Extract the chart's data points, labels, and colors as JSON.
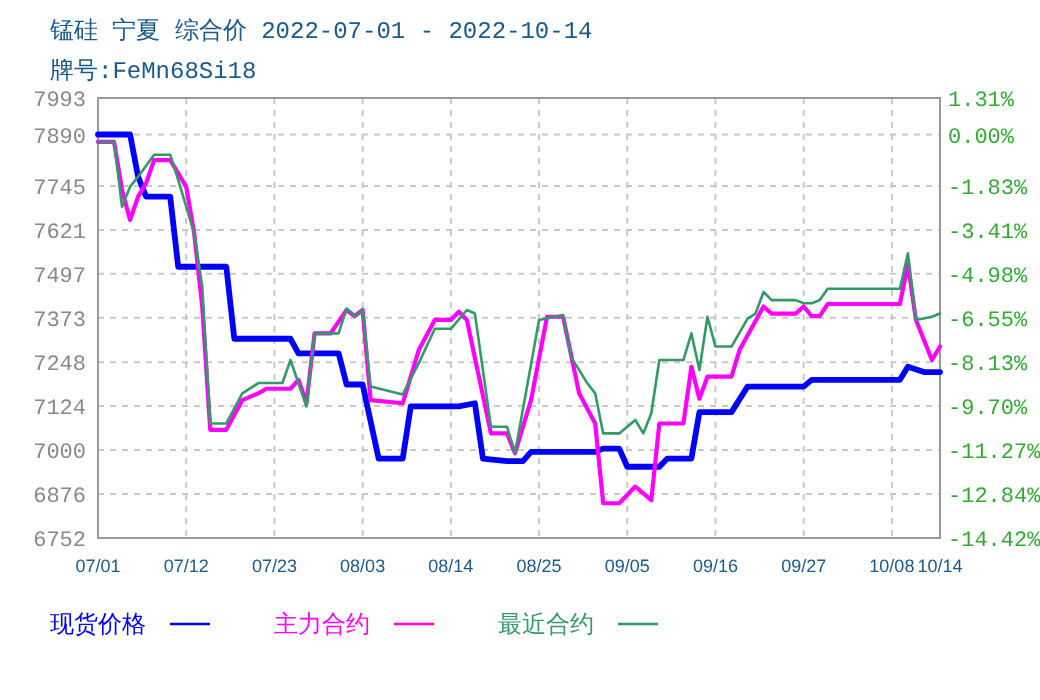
{
  "chart_data": {
    "type": "line",
    "title": "锰硅 宁夏 综合价 2022-07-01 - 2022-10-14",
    "subtitle": "牌号:FeMn68Si18",
    "xlim": [
      "2022-07-01",
      "2022-10-14"
    ],
    "xticks": [
      {
        "value": "2022-07-01",
        "label": "07/01"
      },
      {
        "value": "2022-07-12",
        "label": "07/12"
      },
      {
        "value": "2022-07-23",
        "label": "07/23"
      },
      {
        "value": "2022-08-03",
        "label": "08/03"
      },
      {
        "value": "2022-08-14",
        "label": "08/14"
      },
      {
        "value": "2022-08-25",
        "label": "08/25"
      },
      {
        "value": "2022-09-05",
        "label": "09/05"
      },
      {
        "value": "2022-09-16",
        "label": "09/16"
      },
      {
        "value": "2022-09-27",
        "label": "09/27"
      },
      {
        "value": "2022-10-08",
        "label": "10/08"
      },
      {
        "value": "2022-10-14",
        "label": "10/14"
      }
    ],
    "ylim": [
      6752,
      7993
    ],
    "yticks": [
      6752,
      6876,
      7000,
      7124,
      7248,
      7373,
      7497,
      7621,
      7745,
      7890,
      7993
    ],
    "y2lim": [
      -14.42,
      1.31
    ],
    "y2ticks": [
      {
        "value": -14.42,
        "label": "-14.42%"
      },
      {
        "value": -12.84,
        "label": "-12.84%"
      },
      {
        "value": -11.27,
        "label": "-11.27%"
      },
      {
        "value": -9.7,
        "label": "-9.70%"
      },
      {
        "value": -8.13,
        "label": "-8.13%"
      },
      {
        "value": -6.55,
        "label": "-6.55%"
      },
      {
        "value": -4.98,
        "label": "-4.98%"
      },
      {
        "value": -3.41,
        "label": "-3.41%"
      },
      {
        "value": -1.83,
        "label": "-1.83%"
      },
      {
        "value": 0,
        "label": "0.00%"
      },
      {
        "value": 1.31,
        "label": "1.31%"
      }
    ],
    "grid": true,
    "legend": "bottom",
    "line_style": "solid",
    "series": [
      {
        "name": "现货价格",
        "color": "#0000ff",
        "x": [
          "2022-07-01",
          "2022-07-05",
          "2022-07-06",
          "2022-07-07",
          "2022-07-10",
          "2022-07-11",
          "2022-07-17",
          "2022-07-18",
          "2022-07-25",
          "2022-07-26",
          "2022-07-31",
          "2022-08-01",
          "2022-08-03",
          "2022-08-05",
          "2022-08-08",
          "2022-08-09",
          "2022-08-15",
          "2022-08-17",
          "2022-08-18",
          "2022-08-21",
          "2022-08-23",
          "2022-08-24",
          "2022-09-01",
          "2022-09-02",
          "2022-09-04",
          "2022-09-05",
          "2022-09-09",
          "2022-09-10",
          "2022-09-13",
          "2022-09-14",
          "2022-09-18",
          "2022-09-20",
          "2022-09-27",
          "2022-09-28",
          "2022-10-09",
          "2022-10-10",
          "2022-10-12",
          "2022-10-14"
        ],
        "values": [
          7890,
          7890,
          7771,
          7715,
          7715,
          7517,
          7517,
          7314,
          7314,
          7273,
          7273,
          7185,
          7185,
          6976,
          6976,
          7123,
          7123,
          7132,
          6976,
          6969,
          6969,
          6995,
          6995,
          7004,
          7004,
          6953,
          6953,
          6976,
          6976,
          7107,
          7107,
          7179,
          7179,
          7198,
          7198,
          7235,
          7220,
          7220
        ]
      },
      {
        "name": "主力合约",
        "color": "#ff00ff",
        "x": [
          "2022-07-01",
          "2022-07-03",
          "2022-07-04",
          "2022-07-05",
          "2022-07-06",
          "2022-07-07",
          "2022-07-08",
          "2022-07-10",
          "2022-07-12",
          "2022-07-13",
          "2022-07-14",
          "2022-07-15",
          "2022-07-17",
          "2022-07-19",
          "2022-07-21",
          "2022-07-22",
          "2022-07-25",
          "2022-07-26",
          "2022-07-27",
          "2022-07-28",
          "2022-07-30",
          "2022-08-01",
          "2022-08-02",
          "2022-08-03",
          "2022-08-04",
          "2022-08-08",
          "2022-08-10",
          "2022-08-12",
          "2022-08-14",
          "2022-08-15",
          "2022-08-16",
          "2022-08-19",
          "2022-08-21",
          "2022-08-22",
          "2022-08-24",
          "2022-08-26",
          "2022-08-28",
          "2022-08-30",
          "2022-09-01",
          "2022-09-02",
          "2022-09-04",
          "2022-09-06",
          "2022-09-08",
          "2022-09-09",
          "2022-09-12",
          "2022-09-13",
          "2022-09-14",
          "2022-09-15",
          "2022-09-18",
          "2022-09-19",
          "2022-09-22",
          "2022-09-23",
          "2022-09-26",
          "2022-09-27",
          "2022-09-28",
          "2022-09-29",
          "2022-09-30",
          "2022-10-09",
          "2022-10-10",
          "2022-10-11",
          "2022-10-13",
          "2022-10-14"
        ],
        "values": [
          7869,
          7869,
          7733,
          7649,
          7715,
          7753,
          7818,
          7818,
          7743,
          7611,
          7405,
          7057,
          7057,
          7141,
          7160,
          7173,
          7173,
          7198,
          7132,
          7329,
          7329,
          7395,
          7378,
          7395,
          7141,
          7132,
          7282,
          7367,
          7367,
          7390,
          7367,
          7047,
          7047,
          6991,
          7141,
          7376,
          7376,
          7160,
          7075,
          6850,
          6850,
          6897,
          6859,
          7075,
          7075,
          7235,
          7145,
          7207,
          7207,
          7282,
          7405,
          7385,
          7385,
          7405,
          7378,
          7378,
          7412,
          7412,
          7524,
          7367,
          7254,
          7292
        ]
      },
      {
        "name": "最近合约",
        "color": "#339966",
        "x": [
          "2022-07-01",
          "2022-07-03",
          "2022-07-04",
          "2022-07-05",
          "2022-07-06",
          "2022-07-08",
          "2022-07-10",
          "2022-07-11",
          "2022-07-13",
          "2022-07-14",
          "2022-07-15",
          "2022-07-17",
          "2022-07-19",
          "2022-07-21",
          "2022-07-24",
          "2022-07-25",
          "2022-07-27",
          "2022-07-28",
          "2022-07-31",
          "2022-08-01",
          "2022-08-02",
          "2022-08-03",
          "2022-08-04",
          "2022-08-08",
          "2022-08-10",
          "2022-08-12",
          "2022-08-14",
          "2022-08-16",
          "2022-08-17",
          "2022-08-19",
          "2022-08-21",
          "2022-08-22",
          "2022-08-25",
          "2022-08-28",
          "2022-08-29",
          "2022-08-31",
          "2022-09-01",
          "2022-09-02",
          "2022-09-04",
          "2022-09-06",
          "2022-09-07",
          "2022-09-08",
          "2022-09-09",
          "2022-09-12",
          "2022-09-13",
          "2022-09-14",
          "2022-09-15",
          "2022-09-16",
          "2022-09-18",
          "2022-09-20",
          "2022-09-21",
          "2022-09-22",
          "2022-09-23",
          "2022-09-26",
          "2022-09-27",
          "2022-09-28",
          "2022-09-29",
          "2022-09-30",
          "2022-10-09",
          "2022-10-10",
          "2022-10-11",
          "2022-10-13",
          "2022-10-14"
        ],
        "values": [
          7869,
          7869,
          7686,
          7743,
          7771,
          7833,
          7833,
          7762,
          7611,
          7461,
          7075,
          7075,
          7160,
          7189,
          7189,
          7254,
          7123,
          7329,
          7329,
          7399,
          7378,
          7395,
          7179,
          7157,
          7245,
          7342,
          7342,
          7395,
          7385,
          7066,
          7066,
          6991,
          7367,
          7381,
          7263,
          7189,
          7160,
          7047,
          7047,
          7085,
          7047,
          7104,
          7254,
          7254,
          7329,
          7226,
          7376,
          7292,
          7292,
          7371,
          7385,
          7446,
          7423,
          7423,
          7414,
          7414,
          7423,
          7455,
          7455,
          7555,
          7367,
          7376,
          7385
        ]
      }
    ]
  }
}
